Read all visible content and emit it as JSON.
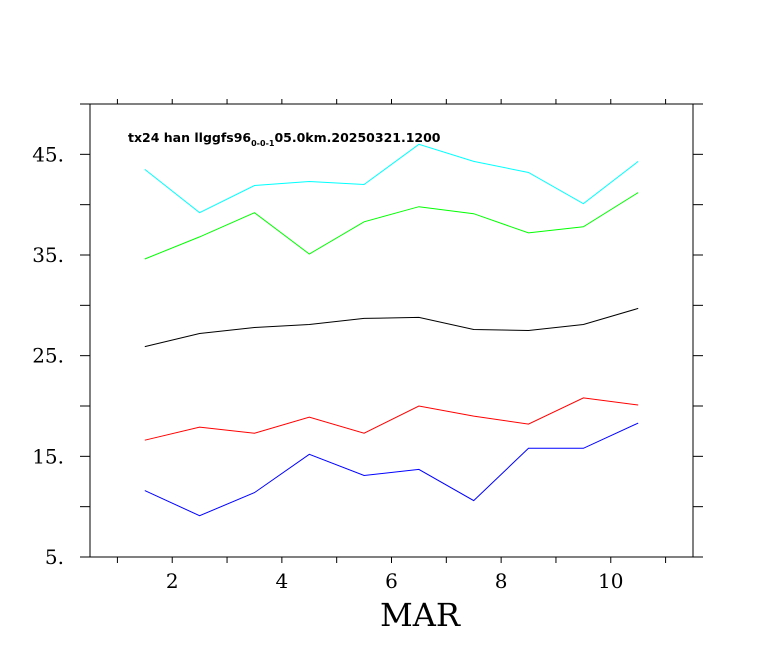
{
  "chart_data": {
    "type": "line",
    "title_parts": [
      "tx24 han llggfs96",
      "0-0-1",
      "05.0km.20250321.1200"
    ],
    "xlabel": "MAR",
    "ylabel": "",
    "xlim": [
      0.5,
      11.5
    ],
    "ylim": [
      5,
      50
    ],
    "xticks": [
      2,
      4,
      6,
      8,
      10
    ],
    "yticks": [
      5,
      15,
      25,
      35,
      45
    ],
    "ytick_labels": [
      "5.",
      "15.",
      "25.",
      "35.",
      "45."
    ],
    "x": [
      1.5,
      2.5,
      3.5,
      4.5,
      5.5,
      6.5,
      7.5,
      8.5,
      9.5,
      10.5
    ],
    "series": [
      {
        "color": "#00ffff",
        "values": [
          43.5,
          39.2,
          41.9,
          42.3,
          42.0,
          46.0,
          44.3,
          43.2,
          40.1,
          44.3
        ]
      },
      {
        "color": "#00ff00",
        "values": [
          34.6,
          36.8,
          39.2,
          35.1,
          38.3,
          39.8,
          39.1,
          37.2,
          37.8,
          41.2
        ]
      },
      {
        "color": "#000000",
        "values": [
          25.9,
          27.2,
          27.8,
          28.1,
          28.7,
          28.8,
          27.6,
          27.5,
          28.1,
          29.7
        ]
      },
      {
        "color": "#ff0000",
        "values": [
          16.6,
          17.9,
          17.3,
          18.9,
          17.3,
          20.0,
          19.0,
          18.2,
          20.8,
          20.1
        ]
      },
      {
        "color": "#0000ff",
        "values": [
          11.6,
          9.1,
          11.4,
          15.2,
          13.1,
          13.7,
          10.6,
          15.8,
          15.8,
          18.3
        ]
      }
    ]
  }
}
